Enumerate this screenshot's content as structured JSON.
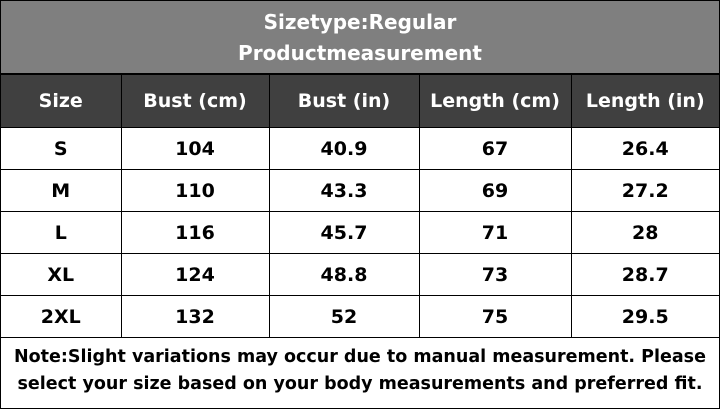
{
  "header": {
    "title": "Sizetype:Regular",
    "subtitle": "Productmeasurement"
  },
  "table": {
    "columns": [
      "Size",
      "Bust (cm)",
      "Bust (in)",
      "Length (cm)",
      "Length (in)"
    ],
    "rows": [
      [
        "S",
        104,
        40.9,
        67,
        26.4
      ],
      [
        "M",
        110,
        43.3,
        69,
        27.2
      ],
      [
        "L",
        116,
        45.7,
        71,
        28
      ],
      [
        "XL",
        124,
        48.8,
        73,
        28.7
      ],
      [
        "2XL",
        132,
        52,
        75,
        29.5
      ]
    ]
  },
  "note": {
    "lines": [
      "Note:Slight variations may occur due to manual measurement. Please",
      "select your size based on your body measurements and preferred fit."
    ]
  }
}
